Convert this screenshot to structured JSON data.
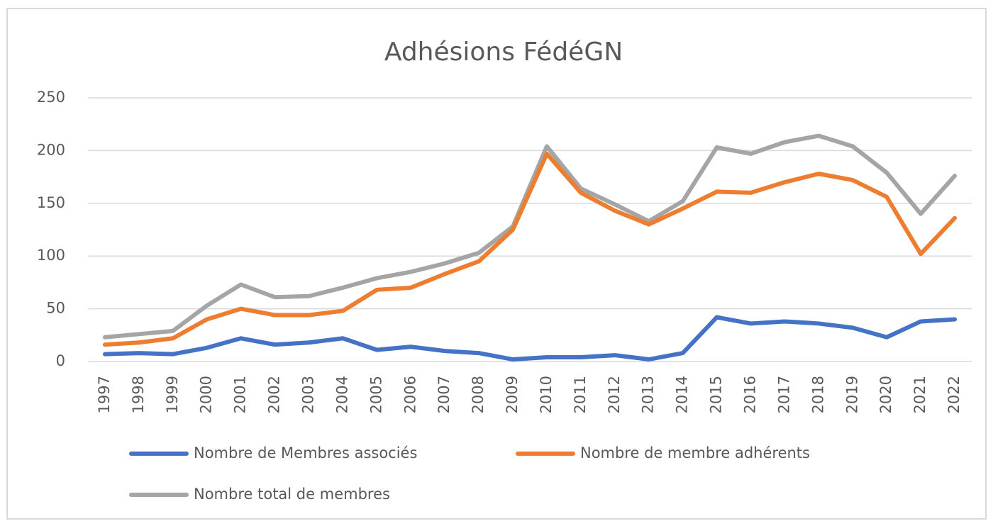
{
  "chart_data": {
    "type": "line",
    "title": "Adhésions FédéGN",
    "categories": [
      "1997",
      "1998",
      "1999",
      "2000",
      "2001",
      "2002",
      "2003",
      "2004",
      "2005",
      "2006",
      "2007",
      "2008",
      "2009",
      "2010",
      "2011",
      "2012",
      "2013",
      "2014",
      "2015",
      "2016",
      "2017",
      "2018",
      "2019",
      "2020",
      "2021",
      "2022"
    ],
    "series": [
      {
        "name": "Nombre de Membres associés",
        "color": "#4472c4",
        "values": [
          7,
          8,
          7,
          13,
          22,
          16,
          18,
          22,
          11,
          14,
          10,
          8,
          2,
          4,
          4,
          6,
          2,
          8,
          42,
          36,
          38,
          36,
          32,
          23,
          38,
          40
        ]
      },
      {
        "name": "Nombre de membre adhérents",
        "color": "#ed7d31",
        "values": [
          16,
          18,
          22,
          40,
          50,
          44,
          44,
          48,
          68,
          70,
          83,
          95,
          125,
          197,
          160,
          143,
          130,
          145,
          161,
          160,
          170,
          178,
          172,
          156,
          102,
          136
        ]
      },
      {
        "name": "Nombre total de membres",
        "color": "#a5a5a5",
        "values": [
          23,
          26,
          29,
          53,
          73,
          61,
          62,
          70,
          79,
          85,
          93,
          103,
          128,
          204,
          164,
          149,
          133,
          152,
          203,
          197,
          208,
          214,
          204,
          179,
          140,
          176
        ]
      }
    ],
    "ylim": [
      0,
      250
    ],
    "yticks": [
      0,
      50,
      100,
      150,
      200,
      250
    ],
    "grid": true,
    "legend": "bottom"
  }
}
